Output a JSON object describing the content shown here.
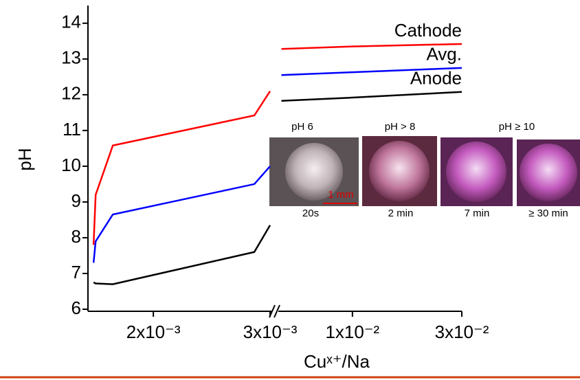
{
  "chart_data": [
    {
      "type": "line",
      "ylabel": "pH",
      "xlabel": "Cuˣ⁺/Na",
      "xlim": [
        0.00144,
        0.003
      ],
      "xticks": [
        {
          "value": 0.002,
          "label": "2x10⁻³"
        },
        {
          "value": 0.003,
          "label": "3x10⁻³"
        }
      ],
      "ylim": [
        6,
        14.4
      ],
      "yticks": [
        6,
        7,
        8,
        9,
        10,
        11,
        12,
        13,
        14
      ],
      "x": [
        0.001488,
        0.001506,
        0.001653,
        0.002865,
        0.003
      ],
      "series": [
        {
          "color": "#ff0000",
          "values": [
            7.8,
            9.2,
            10.58,
            11.42,
            12.1
          ]
        },
        {
          "color": "#0000ff",
          "values": [
            7.3,
            7.9,
            8.65,
            9.5,
            10.0
          ]
        },
        {
          "color": "#000000",
          "values": [
            6.75,
            6.72,
            6.7,
            7.6,
            8.35
          ]
        }
      ]
    },
    {
      "type": "line",
      "log_x": true,
      "xlim": [
        0.00475,
        0.03
      ],
      "xticks": [
        {
          "value": 0.01,
          "label": "1x10⁻²"
        },
        {
          "value": 0.03,
          "label": "3x10⁻²"
        }
      ],
      "ylim": [
        6,
        14.4
      ],
      "x": [
        0.0049,
        0.01,
        0.03
      ],
      "series": [
        {
          "name": "Cathode",
          "color": "#ff0000",
          "values": [
            13.28,
            13.35,
            13.42
          ]
        },
        {
          "name": "Avg.",
          "color": "#0000ff",
          "values": [
            12.55,
            12.63,
            12.75
          ]
        },
        {
          "name": "Anode",
          "color": "#000000",
          "values": [
            11.83,
            11.92,
            12.08
          ]
        }
      ]
    }
  ],
  "inset": {
    "ph_labels": [
      "pH 6",
      "pH > 8",
      "pH ≥ 10"
    ],
    "times": [
      "20s",
      "2 min",
      "7 min",
      "≥ 30 min"
    ],
    "scale_bar": "1 mm"
  }
}
